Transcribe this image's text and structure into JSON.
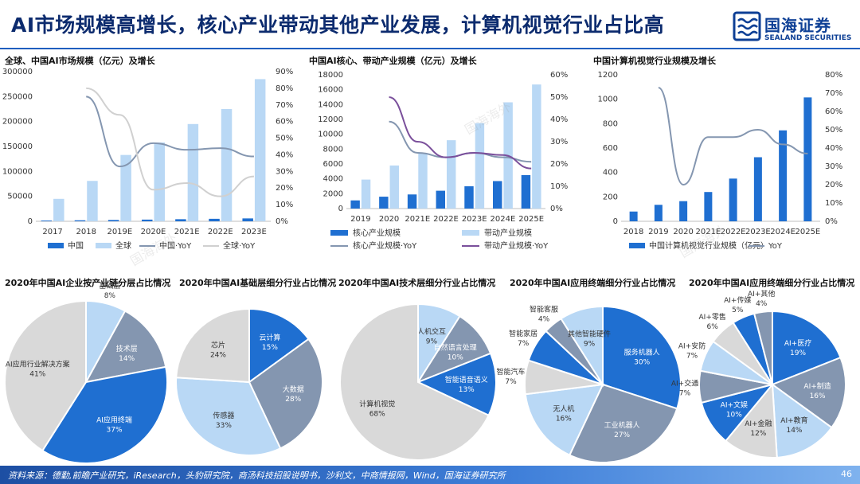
{
  "header": {
    "title": "AI市场规模高增长，核心产业带动其他产业发展，计算机视觉行业占比高",
    "logo_cn": "国海证券",
    "logo_en": "SEALAND SECURITIES"
  },
  "watermark": "国海海外",
  "footer": {
    "source": "资料来源：德勤,前瞻产业研究，iResearch，头豹研究院，商汤科技招股说明书，沙利文，中商情报网，Wind，国海证券研究所",
    "page": "46"
  },
  "colors": {
    "dark_blue": "#1f6fd1",
    "light_blue": "#b9d8f5",
    "gray": "#bfbfbf",
    "slate": "#8496b0",
    "purple": "#7a4f9b",
    "light_gray": "#d9d9d9"
  },
  "chart_data": [
    {
      "id": "c1",
      "type": "bar",
      "title": "全球、中国AI市场规模（亿元）及增长",
      "categories": [
        "2017",
        "2018",
        "2019E",
        "2020E",
        "2021E",
        "2022E",
        "2023E"
      ],
      "series": [
        {
          "name": "中国",
          "kind": "bar",
          "axis": "left",
          "color": "#1f6fd1",
          "values": [
            1500,
            2000,
            2700,
            3400,
            4200,
            5000,
            5800
          ]
        },
        {
          "name": "全球",
          "kind": "bar",
          "axis": "left",
          "color": "#b9d8f5",
          "values": [
            45000,
            81000,
            133000,
            158000,
            195000,
            225000,
            285000
          ]
        },
        {
          "name": "中国·YoY",
          "kind": "line",
          "axis": "right",
          "color": "#8496b0",
          "values": [
            null,
            75,
            33,
            47,
            43,
            44,
            39
          ]
        },
        {
          "name": "全球·YoY",
          "kind": "line",
          "axis": "right",
          "color": "#d0d0d0",
          "values": [
            null,
            80,
            64,
            19,
            23,
            15,
            27
          ]
        }
      ],
      "y_left": {
        "min": 0,
        "max": 300000,
        "ticks": [
          0,
          50000,
          100000,
          150000,
          200000,
          250000,
          300000
        ]
      },
      "y_right": {
        "min": 0,
        "max": 90,
        "ticks": [
          "0%",
          "10%",
          "20%",
          "30%",
          "40%",
          "50%",
          "60%",
          "70%",
          "80%",
          "90%"
        ]
      }
    },
    {
      "id": "c2",
      "type": "bar",
      "title": "中国AI核心、带动产业规模（亿元）及增长",
      "categories": [
        "2019",
        "2020",
        "2021E",
        "2022E",
        "2023E",
        "2024E",
        "2025E"
      ],
      "series": [
        {
          "name": "核心产业规模",
          "kind": "bar",
          "axis": "left",
          "color": "#1f6fd1",
          "values": [
            1100,
            1600,
            1900,
            2400,
            3000,
            3700,
            4500
          ]
        },
        {
          "name": "带动产业规模",
          "kind": "bar",
          "axis": "left",
          "color": "#b9d8f5",
          "values": [
            3900,
            5800,
            7500,
            9200,
            11500,
            14300,
            16700
          ]
        },
        {
          "name": "核心产业规模·YoY",
          "kind": "line",
          "axis": "right",
          "color": "#8496b0",
          "values": [
            null,
            39,
            25,
            23,
            25,
            23,
            21
          ]
        },
        {
          "name": "带动产业规模·YoY",
          "kind": "line",
          "axis": "right",
          "color": "#7a4f9b",
          "values": [
            null,
            50,
            30,
            23,
            25,
            24,
            18
          ]
        }
      ],
      "y_left": {
        "min": 0,
        "max": 18000,
        "ticks": [
          0,
          2000,
          4000,
          6000,
          8000,
          10000,
          12000,
          14000,
          16000,
          18000
        ]
      },
      "y_right": {
        "min": 0,
        "max": 60,
        "ticks": [
          "0%",
          "10%",
          "20%",
          "30%",
          "40%",
          "50%",
          "60%"
        ]
      }
    },
    {
      "id": "c3",
      "type": "bar",
      "title": "中国计算机视觉行业规模及增长",
      "categories": [
        "2018",
        "2019",
        "2020",
        "2021E",
        "2022E",
        "2023E",
        "2024E",
        "2025E"
      ],
      "series": [
        {
          "name": "中国计算机视觉行业规模（亿元）",
          "kind": "bar",
          "axis": "left",
          "color": "#1f6fd1",
          "values": [
            80,
            135,
            165,
            240,
            350,
            525,
            745,
            1015
          ]
        },
        {
          "name": "YoY",
          "kind": "line",
          "axis": "right",
          "color": "#8496b0",
          "values": [
            null,
            73,
            20,
            46,
            46,
            50,
            42,
            37
          ]
        }
      ],
      "y_left": {
        "min": 0,
        "max": 1200,
        "ticks": [
          0,
          200,
          400,
          600,
          800,
          1000,
          1200
        ]
      },
      "y_right": {
        "min": 0,
        "max": 80,
        "ticks": [
          "0%",
          "10%",
          "20%",
          "30%",
          "40%",
          "50%",
          "60%",
          "70%",
          "80%"
        ]
      }
    },
    {
      "id": "p1",
      "type": "pie",
      "title": "2020年中国AI企业按产业链分层占比情况",
      "slices": [
        {
          "label": "基础层",
          "pct": "8%",
          "value": 8,
          "color": "#b9d8f5"
        },
        {
          "label": "技术层",
          "pct": "14%",
          "value": 14,
          "color": "#8496b0"
        },
        {
          "label": "AI应用终端",
          "pct": "37%",
          "value": 37,
          "color": "#1f6fd1"
        },
        {
          "label": "AI应用行业解决方案",
          "pct": "41%",
          "value": 41,
          "color": "#d9d9d9"
        }
      ]
    },
    {
      "id": "p2",
      "type": "pie",
      "title": "2020年中国AI基础层细分行业占比情况",
      "slices": [
        {
          "label": "云计算",
          "pct": "15%",
          "value": 15,
          "color": "#1f6fd1"
        },
        {
          "label": "大数据",
          "pct": "28%",
          "value": 28,
          "color": "#8496b0"
        },
        {
          "label": "传感器",
          "pct": "33%",
          "value": 33,
          "color": "#b9d8f5"
        },
        {
          "label": "芯片",
          "pct": "24%",
          "value": 24,
          "color": "#d9d9d9"
        }
      ]
    },
    {
      "id": "p3",
      "type": "pie",
      "title": "2020年中国AI技术层细分行业占比情况",
      "slices": [
        {
          "label": "人机交互",
          "pct": "9%",
          "value": 9,
          "color": "#b9d8f5"
        },
        {
          "label": "自然语言处理",
          "pct": "10%",
          "value": 10,
          "color": "#8496b0"
        },
        {
          "label": "智能语音语义",
          "pct": "13%",
          "value": 13,
          "color": "#1f6fd1"
        },
        {
          "label": "计算机视觉",
          "pct": "68%",
          "value": 68,
          "color": "#d9d9d9"
        }
      ]
    },
    {
      "id": "p4",
      "type": "pie",
      "title": "2020年中国AI应用终端细分行业占比情况",
      "slices": [
        {
          "label": "服务机器人",
          "pct": "30%",
          "value": 30,
          "color": "#1f6fd1"
        },
        {
          "label": "工业机器人",
          "pct": "27%",
          "value": 27,
          "color": "#8496b0"
        },
        {
          "label": "无人机",
          "pct": "16%",
          "value": 16,
          "color": "#b9d8f5"
        },
        {
          "label": "智能汽车",
          "pct": "7%",
          "value": 7,
          "color": "#d9d9d9"
        },
        {
          "label": "智能家居",
          "pct": "7%",
          "value": 7,
          "color": "#1f6fd1"
        },
        {
          "label": "智能客服",
          "pct": "4%",
          "value": 4,
          "color": "#8496b0"
        },
        {
          "label": "其他智能硬件",
          "pct": "9%",
          "value": 9,
          "color": "#b9d8f5"
        }
      ]
    },
    {
      "id": "p5",
      "type": "pie",
      "title": "2020年中国AI应用终端细分行业占比情况",
      "slices": [
        {
          "label": "AI+医疗",
          "pct": "19%",
          "value": 19,
          "color": "#1f6fd1"
        },
        {
          "label": "AI+制造",
          "pct": "16%",
          "value": 16,
          "color": "#8496b0"
        },
        {
          "label": "AI+教育",
          "pct": "14%",
          "value": 14,
          "color": "#b9d8f5"
        },
        {
          "label": "AI+金融",
          "pct": "12%",
          "value": 12,
          "color": "#d9d9d9"
        },
        {
          "label": "AI+文娱",
          "pct": "10%",
          "value": 10,
          "color": "#1f6fd1"
        },
        {
          "label": "AI+交通",
          "pct": "7%",
          "value": 7,
          "color": "#8496b0"
        },
        {
          "label": "AI+安防",
          "pct": "7%",
          "value": 7,
          "color": "#b9d8f5"
        },
        {
          "label": "AI+零售",
          "pct": "6%",
          "value": 6,
          "color": "#d9d9d9"
        },
        {
          "label": "AI+传媒",
          "pct": "5%",
          "value": 5,
          "color": "#1f6fd1"
        },
        {
          "label": "AI+其他",
          "pct": "4%",
          "value": 4,
          "color": "#8496b0"
        }
      ]
    }
  ]
}
